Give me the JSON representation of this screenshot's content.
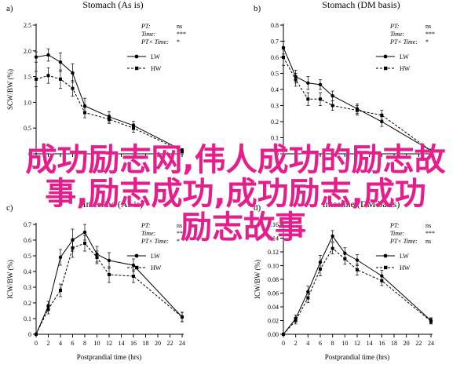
{
  "chart_data": [
    {
      "type": "line",
      "panel_letter": "a)",
      "title": "Stomach (As is)",
      "ylabel": "SCW/BW (%)",
      "ylim": [
        0,
        2.5
      ],
      "yticks": [
        "0",
        "0.5",
        "1.0",
        "1.5",
        "2.0",
        "2.5"
      ],
      "stats": [
        [
          "PT:",
          "ns"
        ],
        [
          "Time:",
          "***"
        ],
        [
          "PT× Time:",
          "*"
        ]
      ],
      "series": [
        {
          "name": "LW",
          "x": [
            0,
            2,
            4,
            6,
            8,
            12,
            16,
            24
          ],
          "values": [
            1.88,
            1.92,
            1.78,
            1.57,
            0.93,
            0.72,
            0.55,
            0.07
          ],
          "err": [
            0.1,
            0.12,
            0.18,
            0.18,
            0.15,
            0.1,
            0.08,
            0.03
          ]
        },
        {
          "name": "HW",
          "x": [
            0,
            2,
            4,
            6,
            8,
            12,
            16,
            24
          ],
          "values": [
            1.45,
            1.52,
            1.45,
            1.27,
            0.8,
            0.67,
            0.5,
            0.05
          ],
          "err": [
            0.15,
            0.15,
            0.18,
            0.15,
            0.1,
            0.08,
            0.08,
            0.03
          ]
        }
      ]
    },
    {
      "type": "line",
      "panel_letter": "b)",
      "title": "Stomach (DM basis)",
      "ylabel": "",
      "ylim": [
        0,
        0.8
      ],
      "yticks": [
        "0",
        "0.1",
        "0.2",
        "0.3",
        "0.4",
        "0.5",
        "0.6",
        "0.7",
        "0.8"
      ],
      "stats": [
        [
          "PT:",
          "ns"
        ],
        [
          "Time:",
          "***"
        ],
        [
          "PT× Time:",
          "*"
        ]
      ],
      "series": [
        {
          "name": "LW",
          "x": [
            0,
            2,
            4,
            6,
            8,
            12,
            16,
            24
          ],
          "values": [
            0.66,
            0.48,
            0.44,
            0.43,
            0.36,
            0.28,
            0.2,
            0.02
          ],
          "err": [
            0.04,
            0.04,
            0.04,
            0.03,
            0.03,
            0.03,
            0.03,
            0.01
          ]
        },
        {
          "name": "HW",
          "x": [
            0,
            2,
            4,
            6,
            8,
            12,
            16,
            24
          ],
          "values": [
            0.6,
            0.46,
            0.34,
            0.34,
            0.3,
            0.27,
            0.24,
            0.02
          ],
          "err": [
            0.05,
            0.04,
            0.04,
            0.04,
            0.03,
            0.03,
            0.03,
            0.01
          ]
        }
      ]
    },
    {
      "type": "line",
      "panel_letter": "c)",
      "title": "Intestine (As is)",
      "ylabel": "ICW/BW (%)",
      "ylim": [
        0,
        0.7
      ],
      "yticks": [
        "0",
        "0.1",
        "0.2",
        "0.3",
        "0.4",
        "0.5",
        "0.6",
        "0.7"
      ],
      "xlabel": "Postprandial time (hrs)",
      "xticks": [
        "0",
        "2",
        "4",
        "6",
        "8",
        "10",
        "12",
        "14",
        "16",
        "18",
        "20",
        "22",
        "24"
      ],
      "stats": [
        [
          "PT:",
          "ns"
        ],
        [
          "Time:",
          "***"
        ],
        [
          "PT× Time:",
          "*"
        ]
      ],
      "series": [
        {
          "name": "LW",
          "x": [
            0,
            2,
            4,
            6,
            8,
            10,
            12,
            16,
            24
          ],
          "values": [
            0.0,
            0.18,
            0.49,
            0.6,
            0.65,
            0.51,
            0.47,
            0.44,
            0.11
          ],
          "err": [
            0.0,
            0.03,
            0.05,
            0.07,
            0.05,
            0.05,
            0.05,
            0.04,
            0.03
          ]
        },
        {
          "name": "HW",
          "x": [
            0,
            2,
            4,
            6,
            8,
            10,
            12,
            16,
            24
          ],
          "values": [
            0.0,
            0.16,
            0.28,
            0.55,
            0.58,
            0.49,
            0.38,
            0.37,
            0.11
          ],
          "err": [
            0.0,
            0.03,
            0.04,
            0.06,
            0.05,
            0.04,
            0.05,
            0.04,
            0.03
          ]
        }
      ]
    },
    {
      "type": "line",
      "panel_letter": "d)",
      "title": "Intestine (DM basis)",
      "ylabel": "ICW/BW (%)",
      "ylim": [
        0,
        0.16
      ],
      "yticks": [
        "0.00",
        "0.02",
        "0.04",
        "0.06",
        "0.08",
        "0.10",
        "0.12",
        "0.14",
        "0.16"
      ],
      "xlabel": "Postprandial time (hrs)",
      "xticks": [
        "0",
        "2",
        "4",
        "6",
        "8",
        "10",
        "12",
        "14",
        "16",
        "18",
        "20",
        "22",
        "24"
      ],
      "stats": [
        [
          "PT:",
          "ns"
        ],
        [
          "Time:",
          "***"
        ],
        [
          "PT× Time:",
          "ns"
        ]
      ],
      "series": [
        {
          "name": "LW",
          "x": [
            0,
            2,
            4,
            6,
            8,
            10,
            12,
            16,
            24
          ],
          "values": [
            0.0,
            0.023,
            0.062,
            0.105,
            0.143,
            0.118,
            0.108,
            0.085,
            0.02
          ],
          "err": [
            0.0,
            0.005,
            0.008,
            0.01,
            0.008,
            0.008,
            0.008,
            0.008,
            0.004
          ]
        },
        {
          "name": "HW",
          "x": [
            0,
            2,
            4,
            6,
            8,
            10,
            12,
            16,
            24
          ],
          "values": [
            0.0,
            0.02,
            0.053,
            0.095,
            0.125,
            0.11,
            0.094,
            0.078,
            0.019
          ],
          "err": [
            0.0,
            0.005,
            0.007,
            0.01,
            0.008,
            0.008,
            0.008,
            0.007,
            0.004
          ]
        }
      ]
    }
  ],
  "overlay": {
    "line1": "成功励志网,伟人成功的励志故",
    "line2": "事,励志成功,成功励志,成功",
    "line3": "励志故事",
    "color": "#e61e8c"
  }
}
